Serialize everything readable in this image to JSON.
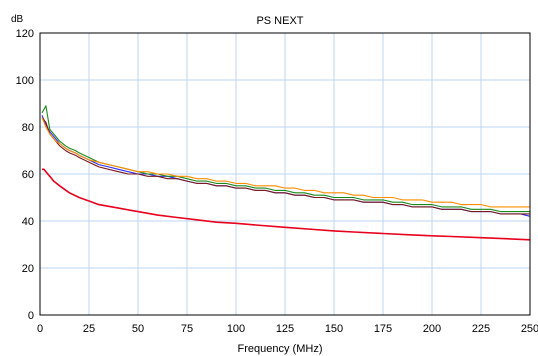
{
  "chart_data": {
    "type": "line",
    "title": "PS NEXT",
    "ylabel": "dB",
    "xlabel": "Frequency (MHz)",
    "xlim": [
      0,
      250
    ],
    "ylim": [
      0,
      120
    ],
    "x_ticks": [
      0,
      25,
      50,
      75,
      100,
      125,
      150,
      175,
      200,
      225,
      250
    ],
    "y_ticks": [
      0,
      20,
      40,
      60,
      80,
      100,
      120
    ],
    "grid": true,
    "series": [
      {
        "color": "#2a2aff",
        "x": [
          1,
          3,
          5,
          8,
          10,
          13,
          15,
          18,
          20,
          25,
          30,
          35,
          40,
          45,
          50,
          55,
          60,
          65,
          70,
          75,
          80,
          85,
          90,
          95,
          100,
          105,
          110,
          115,
          120,
          125,
          130,
          135,
          140,
          145,
          150,
          155,
          160,
          165,
          170,
          175,
          180,
          185,
          190,
          195,
          200,
          205,
          210,
          215,
          220,
          225,
          230,
          235,
          240,
          245,
          250
        ],
        "y": [
          85,
          81,
          78,
          75,
          73,
          71,
          70,
          69,
          68,
          66,
          64,
          63,
          62,
          61,
          60,
          60,
          59,
          59,
          58,
          57,
          56,
          56,
          55,
          55,
          54,
          54,
          53,
          53,
          52,
          52,
          51,
          51,
          50,
          50,
          49,
          49,
          49,
          48,
          48,
          48,
          47,
          47,
          46,
          46,
          46,
          45,
          45,
          45,
          44,
          44,
          44,
          43,
          43,
          43,
          42
        ]
      },
      {
        "color": "#1a8a1a",
        "x": [
          1,
          3,
          5,
          8,
          10,
          13,
          15,
          18,
          20,
          25,
          30,
          35,
          40,
          45,
          50,
          55,
          60,
          65,
          70,
          75,
          80,
          85,
          90,
          95,
          100,
          105,
          110,
          115,
          120,
          125,
          130,
          135,
          140,
          145,
          150,
          155,
          160,
          165,
          170,
          175,
          180,
          185,
          190,
          195,
          200,
          205,
          210,
          215,
          220,
          225,
          230,
          235,
          240,
          245,
          250
        ],
        "y": [
          86,
          89,
          79,
          76,
          74,
          72,
          71,
          70,
          69,
          67,
          65,
          64,
          63,
          62,
          61,
          60,
          60,
          59,
          59,
          58,
          57,
          57,
          56,
          56,
          55,
          55,
          54,
          54,
          53,
          53,
          52,
          52,
          51,
          51,
          50,
          50,
          50,
          49,
          49,
          49,
          48,
          48,
          47,
          47,
          47,
          46,
          46,
          46,
          45,
          45,
          45,
          44,
          44,
          44,
          44
        ]
      },
      {
        "color": "#7a1a1a",
        "x": [
          1,
          3,
          5,
          8,
          10,
          13,
          15,
          18,
          20,
          25,
          30,
          35,
          40,
          45,
          50,
          55,
          60,
          65,
          70,
          75,
          80,
          85,
          90,
          95,
          100,
          105,
          110,
          115,
          120,
          125,
          130,
          135,
          140,
          145,
          150,
          155,
          160,
          165,
          170,
          175,
          180,
          185,
          190,
          195,
          200,
          205,
          210,
          215,
          220,
          225,
          230,
          235,
          240,
          245,
          250
        ],
        "y": [
          84,
          82,
          77,
          74,
          72,
          70,
          69,
          68,
          67,
          65,
          63,
          62,
          61,
          60,
          60,
          59,
          59,
          58,
          58,
          57,
          56,
          56,
          55,
          55,
          54,
          54,
          53,
          53,
          52,
          52,
          51,
          51,
          50,
          50,
          49,
          49,
          49,
          48,
          48,
          48,
          47,
          47,
          46,
          46,
          46,
          45,
          45,
          45,
          44,
          44,
          44,
          43,
          43,
          43,
          43
        ]
      },
      {
        "color": "#ff8c00",
        "x": [
          1,
          3,
          5,
          8,
          10,
          13,
          15,
          18,
          20,
          25,
          30,
          35,
          40,
          45,
          50,
          55,
          60,
          65,
          70,
          75,
          80,
          85,
          90,
          95,
          100,
          105,
          110,
          115,
          120,
          125,
          130,
          135,
          140,
          145,
          150,
          155,
          160,
          165,
          170,
          175,
          180,
          185,
          190,
          195,
          200,
          205,
          210,
          215,
          220,
          225,
          230,
          235,
          240,
          245,
          250
        ],
        "y": [
          84,
          80,
          77,
          74,
          73,
          71,
          70,
          69,
          68,
          66,
          65,
          64,
          63,
          62,
          61,
          61,
          60,
          60,
          59,
          59,
          58,
          58,
          57,
          57,
          56,
          56,
          55,
          55,
          55,
          54,
          54,
          53,
          53,
          52,
          52,
          52,
          51,
          51,
          50,
          50,
          50,
          49,
          49,
          49,
          48,
          48,
          48,
          47,
          47,
          47,
          46,
          46,
          46,
          46,
          46
        ]
      },
      {
        "color": "#e8001c",
        "x": [
          1,
          2,
          3,
          4,
          5,
          7,
          10,
          15,
          20,
          25,
          30,
          40,
          50,
          60,
          70,
          80,
          90,
          100,
          110,
          125,
          140,
          150,
          160,
          175,
          190,
          200,
          210,
          225,
          240,
          250
        ],
        "y": [
          62,
          62,
          61,
          60,
          59,
          57,
          55,
          52,
          50,
          48.5,
          47,
          45.5,
          44,
          42.5,
          41.5,
          40.5,
          39.5,
          39,
          38.3,
          37.3,
          36.4,
          35.8,
          35.3,
          34.7,
          34.1,
          33.7,
          33.4,
          32.9,
          32.4,
          32
        ]
      }
    ]
  }
}
